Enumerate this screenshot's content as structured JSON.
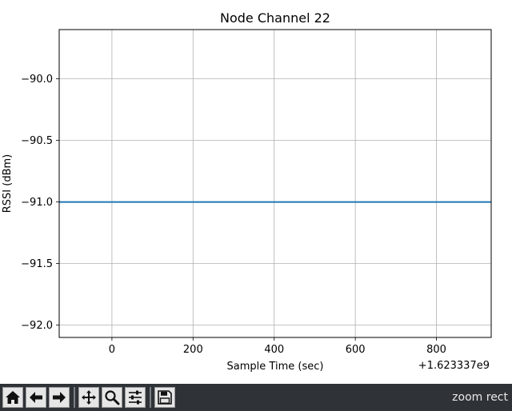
{
  "chart_data": {
    "type": "line",
    "title": "Node Channel 22",
    "xlabel": "Sample Time (sec)",
    "ylabel": "RSSI (dBm)",
    "x_offset_label": "+1.623337e9",
    "xlim": [
      -130,
      935
    ],
    "ylim": [
      -92.1,
      -89.6
    ],
    "xticks": [
      0,
      200,
      400,
      600,
      800
    ],
    "xtick_labels": [
      "0",
      "200",
      "400",
      "600",
      "800"
    ],
    "yticks": [
      -90.0,
      -90.5,
      -91.0,
      -91.5,
      -92.0
    ],
    "ytick_labels": [
      "−90.0",
      "−90.5",
      "−91.0",
      "−91.5",
      "−92.0"
    ],
    "grid": true,
    "series": [
      {
        "color": "#1f77b4",
        "x": [
          -130,
          935
        ],
        "y": [
          -91.0,
          -91.0
        ]
      }
    ]
  },
  "toolbar": {
    "buttons": [
      {
        "name": "home-button",
        "icon": "home-icon",
        "tooltip": "Home"
      },
      {
        "name": "back-button",
        "icon": "arrow-left-icon",
        "tooltip": "Back"
      },
      {
        "name": "forward-button",
        "icon": "arrow-right-icon",
        "tooltip": "Forward"
      },
      {
        "name": "pan-button",
        "icon": "move-icon",
        "tooltip": "Pan"
      },
      {
        "name": "zoom-button",
        "icon": "magnifier-icon",
        "tooltip": "Zoom"
      },
      {
        "name": "configure-subplots-button",
        "icon": "sliders-icon",
        "tooltip": "Subplots"
      },
      {
        "name": "save-button",
        "icon": "floppy-disk-icon",
        "tooltip": "Save"
      }
    ],
    "status": "zoom rect"
  }
}
